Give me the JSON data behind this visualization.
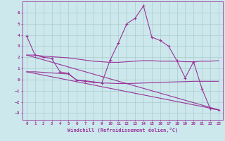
{
  "background_color": "#cce8ec",
  "grid_color": "#aacccc",
  "line_color": "#993399",
  "xlabel": "Windchill (Refroidissement éolien,°C)",
  "xlim": [
    -0.5,
    23.5
  ],
  "ylim": [
    -3.6,
    7.0
  ],
  "xticks": [
    0,
    1,
    2,
    3,
    4,
    5,
    6,
    7,
    8,
    9,
    10,
    11,
    12,
    13,
    14,
    15,
    16,
    17,
    18,
    19,
    20,
    21,
    22,
    23
  ],
  "yticks": [
    -3,
    -2,
    -1,
    0,
    1,
    2,
    3,
    4,
    5,
    6
  ],
  "line1_x": [
    0,
    1,
    2,
    3,
    4,
    5,
    6,
    7,
    8,
    9,
    10,
    11,
    12,
    13,
    14,
    15,
    16,
    17,
    18,
    19,
    20,
    21,
    22,
    23
  ],
  "line1_y": [
    3.9,
    2.2,
    2.0,
    1.9,
    0.7,
    0.55,
    -0.05,
    -0.1,
    -0.2,
    -0.3,
    1.75,
    3.3,
    5.0,
    5.5,
    6.6,
    3.8,
    3.5,
    3.0,
    1.7,
    0.15,
    1.6,
    -0.8,
    -2.6,
    -2.7
  ],
  "line2_x": [
    0,
    1,
    2,
    3,
    4,
    5,
    6,
    7,
    8,
    9,
    10,
    11,
    12,
    13,
    14,
    15,
    16,
    17,
    18,
    19,
    20,
    21,
    22,
    23
  ],
  "line2_y": [
    2.2,
    2.2,
    2.1,
    2.05,
    2.0,
    1.95,
    1.85,
    1.75,
    1.65,
    1.6,
    1.55,
    1.55,
    1.6,
    1.65,
    1.7,
    1.7,
    1.65,
    1.65,
    1.65,
    1.6,
    1.6,
    1.65,
    1.65,
    1.7
  ],
  "line3_x": [
    0,
    1,
    2,
    3,
    4,
    5,
    6,
    7,
    8,
    9,
    10,
    11,
    12,
    13,
    14,
    15,
    16,
    17,
    18,
    19,
    20,
    21,
    22,
    23
  ],
  "line3_y": [
    0.7,
    0.7,
    0.65,
    0.6,
    0.55,
    0.5,
    -0.05,
    -0.15,
    -0.25,
    -0.3,
    -0.32,
    -0.35,
    -0.35,
    -0.33,
    -0.3,
    -0.28,
    -0.25,
    -0.22,
    -0.2,
    -0.18,
    -0.15,
    -0.15,
    -0.15,
    -0.15
  ],
  "line4_x": [
    0,
    23
  ],
  "line4_y": [
    2.2,
    -2.7
  ],
  "line5_x": [
    0,
    23
  ],
  "line5_y": [
    0.7,
    -2.7
  ]
}
